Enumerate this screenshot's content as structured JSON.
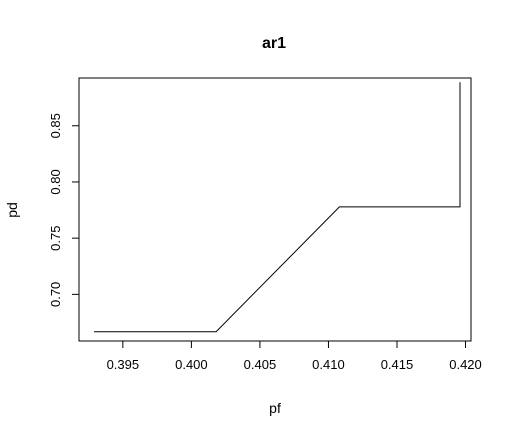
{
  "chart_data": {
    "type": "line",
    "title": "ar1",
    "xlabel": "pf",
    "ylabel": "pd",
    "xlim": [
      0.3918,
      0.4204
    ],
    "ylim": [
      0.6585,
      0.8925
    ],
    "xticks": [
      0.395,
      0.4,
      0.405,
      0.41,
      0.415,
      0.42
    ],
    "xtick_labels": [
      "0.395",
      "0.400",
      "0.405",
      "0.410",
      "0.415",
      "0.420"
    ],
    "yticks": [
      0.7,
      0.75,
      0.8,
      0.85
    ],
    "ytick_labels": [
      "0.70",
      "0.75",
      "0.80",
      "0.85"
    ],
    "grid": false,
    "series": [
      {
        "x": [
          0.3929,
          0.4018,
          0.4108,
          0.4196,
          0.4196
        ],
        "y": [
          0.6668,
          0.6668,
          0.7778,
          0.7778,
          0.8888
        ]
      }
    ]
  }
}
